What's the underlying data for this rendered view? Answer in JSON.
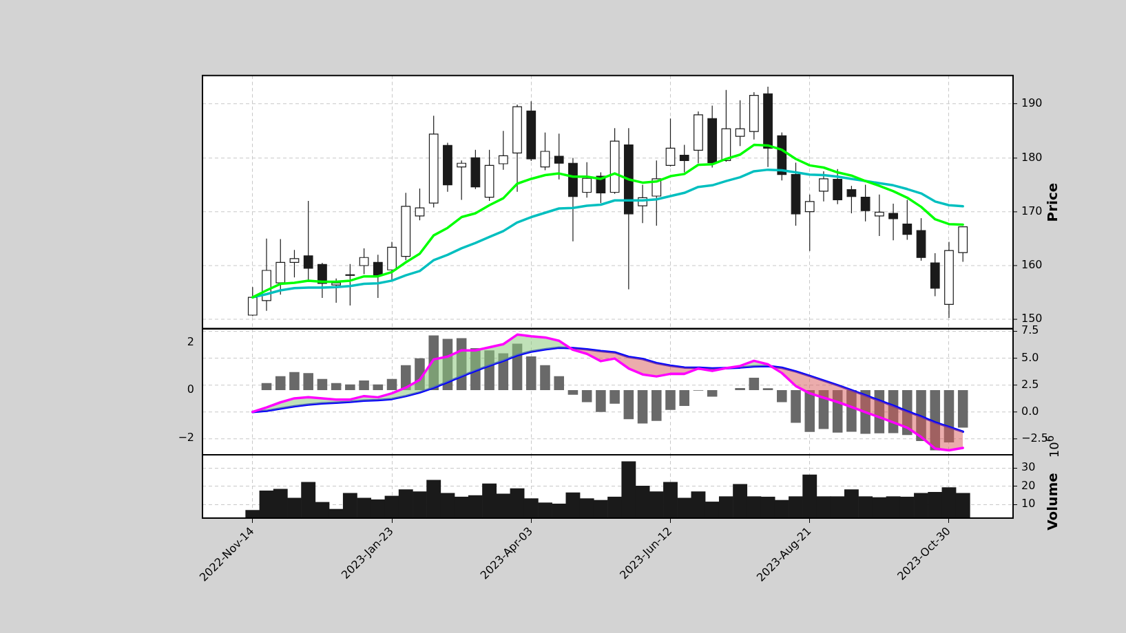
{
  "chart_data": [
    {
      "type": "candlestick",
      "ylabel": "Price",
      "categories": [
        null,
        null,
        null,
        null,
        null,
        null,
        null,
        null,
        null,
        null,
        null,
        null,
        null,
        null,
        null,
        null,
        null,
        null,
        null,
        null,
        null,
        null,
        null,
        null,
        null,
        null,
        null,
        null,
        null,
        null,
        null,
        null,
        null,
        null,
        null,
        null,
        null,
        null,
        null,
        null,
        null,
        null,
        null,
        null,
        null,
        null,
        null,
        null,
        null,
        null,
        null,
        null
      ],
      "ohlc": [
        [
          150.8,
          156.0,
          150.6,
          154.1
        ],
        [
          153.5,
          165.0,
          151.6,
          159.1
        ],
        [
          156.8,
          164.9,
          154.6,
          160.6
        ],
        [
          160.6,
          162.9,
          157.8,
          161.3
        ],
        [
          161.8,
          172.0,
          157.3,
          159.5
        ],
        [
          160.2,
          160.5,
          154.0,
          156.7
        ],
        [
          156.4,
          157.6,
          153.1,
          156.8
        ],
        [
          158.2,
          160.3,
          152.6,
          158.3
        ],
        [
          160.0,
          163.2,
          158.4,
          161.5
        ],
        [
          160.6,
          162.0,
          154.0,
          158.2
        ],
        [
          159.2,
          164.4,
          157.3,
          163.4
        ],
        [
          161.7,
          173.5,
          161.0,
          171.0
        ],
        [
          169.2,
          174.3,
          168.4,
          170.7
        ],
        [
          171.6,
          187.8,
          170.8,
          184.4
        ],
        [
          182.3,
          182.8,
          173.7,
          175.0
        ],
        [
          178.3,
          179.5,
          172.2,
          179.0
        ],
        [
          180.0,
          181.5,
          174.2,
          174.6
        ],
        [
          172.7,
          181.5,
          172.0,
          178.6
        ],
        [
          178.9,
          185.0,
          177.8,
          180.4
        ],
        [
          180.9,
          189.9,
          173.7,
          189.5
        ],
        [
          188.7,
          190.5,
          179.4,
          179.8
        ],
        [
          178.3,
          184.7,
          177.7,
          181.2
        ],
        [
          180.3,
          184.5,
          176.0,
          179.0
        ],
        [
          179.0,
          180.0,
          164.5,
          172.8
        ],
        [
          173.6,
          179.2,
          172.6,
          176.2
        ],
        [
          176.6,
          177.3,
          171.6,
          173.5
        ],
        [
          173.6,
          185.5,
          173.3,
          183.1
        ],
        [
          182.4,
          185.5,
          155.6,
          169.6
        ],
        [
          171.1,
          175.0,
          167.9,
          172.6
        ],
        [
          172.9,
          179.5,
          167.4,
          176.1
        ],
        [
          178.6,
          187.3,
          178.4,
          181.8
        ],
        [
          180.5,
          182.4,
          177.3,
          179.5
        ],
        [
          181.4,
          188.6,
          179.0,
          188.0
        ],
        [
          187.3,
          189.7,
          178.2,
          179.1
        ],
        [
          179.5,
          192.6,
          179.3,
          185.4
        ],
        [
          184.0,
          190.7,
          182.2,
          185.4
        ],
        [
          184.9,
          192.2,
          183.4,
          191.6
        ],
        [
          191.9,
          193.2,
          178.3,
          181.8
        ],
        [
          184.1,
          184.7,
          175.8,
          176.9
        ],
        [
          176.9,
          179.1,
          167.4,
          169.6
        ],
        [
          170.0,
          173.2,
          162.7,
          171.9
        ],
        [
          173.8,
          177.5,
          171.9,
          176.1
        ],
        [
          176.0,
          177.9,
          171.4,
          172.2
        ],
        [
          174.1,
          174.8,
          169.7,
          172.8
        ],
        [
          172.7,
          175.0,
          168.2,
          170.2
        ],
        [
          169.2,
          173.2,
          165.5,
          169.9
        ],
        [
          169.7,
          171.5,
          164.7,
          168.7
        ],
        [
          167.7,
          172.2,
          164.8,
          165.8
        ],
        [
          166.5,
          168.8,
          160.9,
          161.5
        ],
        [
          160.5,
          162.3,
          154.3,
          155.8
        ],
        [
          152.8,
          164.4,
          150.3,
          162.8
        ],
        [
          162.4,
          167.3,
          160.7,
          167.2
        ]
      ],
      "series": [
        {
          "type": "line",
          "color": "#00ff00",
          "values": [
            154.1,
            155.4,
            156.6,
            156.8,
            157.2,
            157.0,
            157.0,
            157.2,
            158.0,
            158.0,
            158.8,
            160.6,
            162.2,
            165.6,
            167.0,
            169.0,
            169.7,
            171.2,
            172.5,
            175.2,
            176.1,
            176.8,
            177.1,
            176.5,
            176.5,
            176.1,
            177.1,
            176.0,
            175.4,
            175.6,
            176.6,
            177.0,
            178.7,
            178.8,
            179.8,
            180.6,
            182.4,
            182.3,
            181.5,
            179.8,
            178.6,
            178.2,
            177.3,
            176.7,
            175.7,
            174.8,
            173.8,
            172.6,
            170.9,
            168.6,
            167.7,
            167.6
          ]
        },
        {
          "type": "line",
          "color": "#00bfbf",
          "values": [
            154.1,
            154.7,
            155.4,
            155.8,
            155.9,
            155.9,
            156.0,
            156.2,
            156.6,
            156.7,
            157.2,
            158.2,
            159.0,
            161.0,
            162.0,
            163.2,
            164.2,
            165.3,
            166.4,
            168.0,
            169.0,
            169.8,
            170.6,
            170.7,
            171.1,
            171.3,
            172.1,
            172.1,
            172.1,
            172.3,
            172.9,
            173.5,
            174.6,
            174.9,
            175.7,
            176.4,
            177.5,
            177.8,
            177.7,
            177.3,
            176.9,
            176.8,
            176.5,
            176.1,
            175.7,
            175.3,
            174.9,
            174.2,
            173.4,
            171.9,
            171.2,
            171.0
          ]
        }
      ],
      "ylim": [
        148.3,
        195.3
      ],
      "yticks": [
        150,
        160,
        170,
        180,
        190
      ],
      "grid": true,
      "tick_labels": "y"
    },
    {
      "type": "bar",
      "categories": [
        null,
        null,
        null,
        null,
        null,
        null,
        null,
        null,
        null,
        null,
        null,
        null,
        null,
        null,
        null,
        null,
        null,
        null,
        null,
        null,
        null,
        null,
        null,
        null,
        null,
        null,
        null,
        null,
        null,
        null,
        null,
        null,
        null,
        null,
        null,
        null,
        null,
        null,
        null,
        null,
        null,
        null,
        null,
        null,
        null,
        null,
        null,
        null,
        null,
        null,
        null,
        null
      ],
      "series": [
        {
          "type": "bar",
          "color": "#696969",
          "values": [
            null,
            0.3,
            0.59,
            0.76,
            0.72,
            0.47,
            0.3,
            0.24,
            0.41,
            0.24,
            0.47,
            1.05,
            1.34,
            2.3,
            2.15,
            2.18,
            1.76,
            1.67,
            1.55,
            1.95,
            1.42,
            1.05,
            0.59,
            -0.19,
            -0.5,
            -0.91,
            -0.57,
            -1.22,
            -1.4,
            -1.29,
            -0.83,
            -0.66,
            -0.02,
            -0.27,
            null,
            0.09,
            0.52,
            0.08,
            -0.5,
            -1.37,
            -1.75,
            -1.63,
            -1.78,
            -1.74,
            -1.83,
            -1.81,
            -1.8,
            -1.88,
            -2.13,
            -2.52,
            -2.19,
            -1.57
          ]
        },
        {
          "type": "line",
          "axis": "y2",
          "color": "#ff00ff",
          "values": [
            0,
            0.42,
            0.89,
            1.26,
            1.36,
            1.26,
            1.15,
            1.15,
            1.47,
            1.36,
            1.73,
            2.25,
            2.98,
            4.87,
            5.13,
            5.71,
            5.71,
            6.0,
            6.28,
            7.17,
            7.02,
            6.91,
            6.6,
            5.76,
            5.39,
            4.71,
            4.95,
            4.03,
            3.48,
            3.29,
            3.53,
            3.53,
            4.02,
            3.8,
            4.07,
            4.26,
            4.74,
            4.42,
            3.61,
            2.4,
            1.73,
            1.32,
            0.92,
            0.46,
            -0.03,
            -0.49,
            -0.97,
            -1.46,
            -2.32,
            -3.4,
            -3.56,
            -3.34
          ]
        },
        {
          "type": "line",
          "axis": "y2",
          "color": "#0000ff",
          "values": [
            0,
            0.1,
            0.31,
            0.52,
            0.68,
            0.79,
            0.86,
            0.94,
            1.05,
            1.1,
            1.2,
            1.47,
            1.81,
            2.25,
            2.77,
            3.3,
            3.82,
            4.29,
            4.74,
            5.26,
            5.6,
            5.81,
            5.97,
            5.92,
            5.81,
            5.65,
            5.52,
            5.1,
            4.91,
            4.53,
            4.29,
            4.12,
            4.1,
            4.04,
            4.07,
            4.12,
            4.23,
            4.26,
            4.1,
            3.75,
            3.34,
            2.91,
            2.48,
            2.02,
            1.54,
            1.05,
            0.57,
            0.05,
            -0.43,
            -0.97,
            -1.4,
            -1.83
          ]
        }
      ],
      "ylim": [
        -2.72,
        2.57
      ],
      "yticks": [
        {
          "value": -2,
          "label": "−2"
        },
        0,
        2
      ],
      "y2lim": [
        -4.0,
        7.7
      ],
      "y2ticks": [
        {
          "value": -2.5,
          "label": "−2.5"
        },
        {
          "value": 0,
          "label": "0.0"
        },
        {
          "value": 2.5,
          "label": "2.5"
        },
        {
          "value": 5,
          "label": "5.0"
        },
        {
          "value": 7.5,
          "label": "7.5"
        }
      ],
      "grid": true,
      "tick_labels": "y"
    },
    {
      "type": "bar",
      "ylabel": "Volume",
      "color": "#1a1a1a",
      "annotations": [
        "10$^{6}$"
      ],
      "categories": [
        "2022-Nov-14",
        null,
        null,
        null,
        null,
        null,
        null,
        null,
        null,
        null,
        "2023-Jan-23",
        null,
        null,
        null,
        null,
        null,
        null,
        null,
        null,
        null,
        "2023-Apr-03",
        null,
        null,
        null,
        null,
        null,
        null,
        null,
        null,
        null,
        "2023-Jun-12",
        null,
        null,
        null,
        null,
        null,
        null,
        null,
        null,
        null,
        "2023-Aug-21",
        null,
        null,
        null,
        null,
        null,
        null,
        null,
        null,
        null,
        "2023-Oct-30",
        null
      ],
      "values": [
        6.8,
        17.5,
        18.4,
        13.5,
        22.2,
        11.2,
        7.4,
        16.1,
        13.5,
        12.6,
        14.6,
        18.1,
        17.0,
        23.3,
        16.1,
        14.1,
        14.9,
        21.3,
        15.8,
        18.7,
        13.2,
        10.9,
        10.3,
        16.4,
        13.2,
        12.3,
        14.1,
        33.5,
        20.1,
        17.0,
        22.2,
        13.5,
        17.0,
        11.4,
        14.3,
        21.0,
        14.3,
        14.1,
        12.3,
        14.3,
        26.2,
        14.3,
        14.3,
        18.1,
        14.3,
        13.8,
        14.3,
        14.1,
        16.1,
        16.7,
        19.3,
        16.1
      ],
      "ylim": [
        2.5,
        37.2
      ],
      "yticks": [
        10,
        20,
        30
      ],
      "grid": true
    }
  ]
}
